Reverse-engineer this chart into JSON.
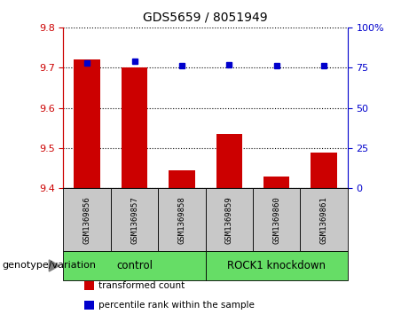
{
  "title": "GDS5659 / 8051949",
  "samples": [
    "GSM1369856",
    "GSM1369857",
    "GSM1369858",
    "GSM1369859",
    "GSM1369860",
    "GSM1369861"
  ],
  "bar_values": [
    9.72,
    9.7,
    9.445,
    9.535,
    9.43,
    9.49
  ],
  "dot_values": [
    78,
    79,
    76,
    77,
    76,
    76
  ],
  "ylim_left": [
    9.4,
    9.8
  ],
  "ylim_right": [
    0,
    100
  ],
  "yticks_left": [
    9.4,
    9.5,
    9.6,
    9.7,
    9.8
  ],
  "yticks_right": [
    0,
    25,
    50,
    75,
    100
  ],
  "ytick_labels_right": [
    "0",
    "25",
    "50",
    "75",
    "100%"
  ],
  "bar_color": "#cc0000",
  "dot_color": "#0000cc",
  "groups": [
    {
      "label": "control",
      "n_samples": 3,
      "color": "#66dd66"
    },
    {
      "label": "ROCK1 knockdown",
      "n_samples": 3,
      "color": "#66dd66"
    }
  ],
  "xlabel_left": "genotype/variation",
  "legend_items": [
    {
      "label": "transformed count",
      "color": "#cc0000"
    },
    {
      "label": "percentile rank within the sample",
      "color": "#0000cc"
    }
  ],
  "left_yaxis_color": "#cc0000",
  "right_yaxis_color": "#0000cc",
  "sample_box_color": "#c8c8c8",
  "bar_bottom": 9.4,
  "bar_width": 0.55
}
